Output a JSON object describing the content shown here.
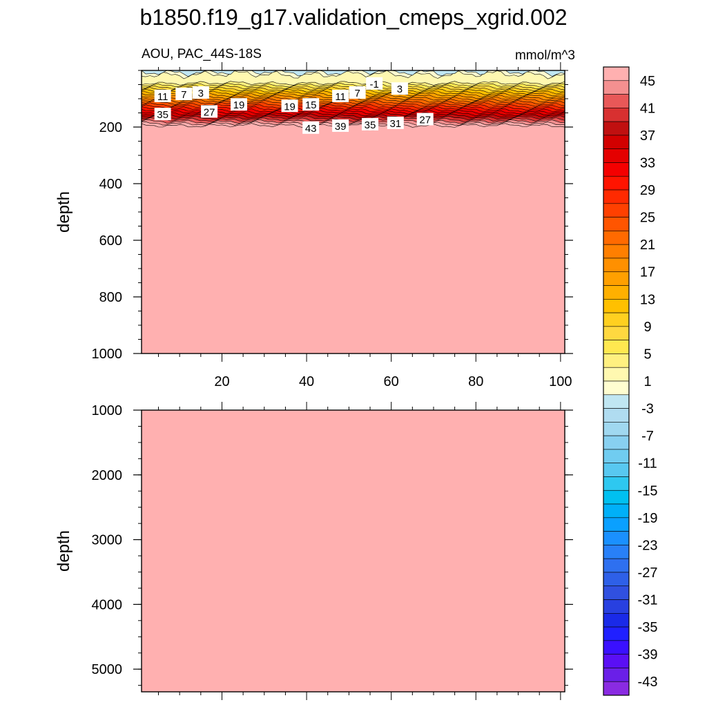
{
  "title": "b1850.f19_g17.validation_cmeps_xgrid.002",
  "chart_data": {
    "type": "contour",
    "field_label": "AOU, PAC_44S-18S",
    "units": "mmol/m^3",
    "xlim": [
      1,
      101
    ],
    "x_ticks": [
      20,
      40,
      60,
      80,
      100
    ],
    "colorbar": {
      "levels": [
        -45,
        -43,
        -41,
        -39,
        -37,
        -35,
        -33,
        -31,
        -29,
        -27,
        -25,
        -23,
        -21,
        -19,
        -17,
        -15,
        -13,
        -11,
        -9,
        -7,
        -5,
        -3,
        -1,
        1,
        3,
        5,
        7,
        9,
        11,
        13,
        15,
        17,
        19,
        21,
        23,
        25,
        27,
        29,
        31,
        33,
        35,
        37,
        39,
        41,
        43,
        45
      ],
      "labels": [
        "45",
        "41",
        "37",
        "33",
        "29",
        "25",
        "21",
        "17",
        "13",
        "9",
        "5",
        "1",
        "-3",
        "-7",
        "-11",
        "-15",
        "-19",
        "-23",
        "-27",
        "-31",
        "-35",
        "-39",
        "-43"
      ],
      "label_values": [
        45,
        41,
        37,
        33,
        29,
        25,
        21,
        17,
        13,
        9,
        5,
        1,
        -3,
        -7,
        -11,
        -15,
        -19,
        -23,
        -27,
        -31,
        -35,
        -39,
        -43
      ],
      "colors": [
        "#8a2be2",
        "#6a1fe8",
        "#5a0ff5",
        "#3a10ff",
        "#2020ff",
        "#1a2ae8",
        "#2840e0",
        "#3050e0",
        "#2e60e8",
        "#2e70f0",
        "#2880f8",
        "#1a90ff",
        "#0aa0ff",
        "#00b0f8",
        "#00c0f0",
        "#2ec8f0",
        "#58c8f0",
        "#70ccf0",
        "#88d0f0",
        "#a0d8f0",
        "#b0dcf0",
        "#c0e6f2",
        "#fffdd0",
        "#fff8b0",
        "#fff080",
        "#ffe850",
        "#ffd840",
        "#ffd020",
        "#ffc000",
        "#ffb000",
        "#ffa000",
        "#ff9000",
        "#ff7f00",
        "#ff6a00",
        "#ff5500",
        "#ff4000",
        "#ff2a00",
        "#ff1400",
        "#f40000",
        "#e40000",
        "#d20000",
        "#c01010",
        "#d83030",
        "#e85858",
        "#f49090",
        "#ffb0b0"
      ]
    },
    "panels": [
      {
        "name": "upper",
        "ylabel": "depth",
        "ylim": [
          0,
          1000
        ],
        "y_ticks": [
          200,
          400,
          600,
          800,
          1000
        ],
        "contour_labels": [
          {
            "text": "11",
            "x": 6,
            "y": 90
          },
          {
            "text": "7",
            "x": 11,
            "y": 83
          },
          {
            "text": "3",
            "x": 15,
            "y": 78
          },
          {
            "text": "-1",
            "x": 56,
            "y": 46
          },
          {
            "text": "3",
            "x": 62,
            "y": 64
          },
          {
            "text": "7",
            "x": 52,
            "y": 78
          },
          {
            "text": "11",
            "x": 48,
            "y": 90
          },
          {
            "text": "15",
            "x": 41,
            "y": 120
          },
          {
            "text": "19",
            "x": 36,
            "y": 125
          },
          {
            "text": "19",
            "x": 24,
            "y": 120
          },
          {
            "text": "27",
            "x": 17,
            "y": 145
          },
          {
            "text": "35",
            "x": 6,
            "y": 154
          },
          {
            "text": "43",
            "x": 41,
            "y": 202
          },
          {
            "text": "39",
            "x": 48,
            "y": 195
          },
          {
            "text": "35",
            "x": 55,
            "y": 190
          },
          {
            "text": "31",
            "x": 61,
            "y": 185
          },
          {
            "text": "27",
            "x": 68,
            "y": 172
          }
        ]
      },
      {
        "name": "lower",
        "ylabel": "depth",
        "ylim": [
          1000,
          5350
        ],
        "y_ticks": [
          1000,
          2000,
          3000,
          4000,
          5000
        ],
        "contour_labels": []
      }
    ]
  }
}
